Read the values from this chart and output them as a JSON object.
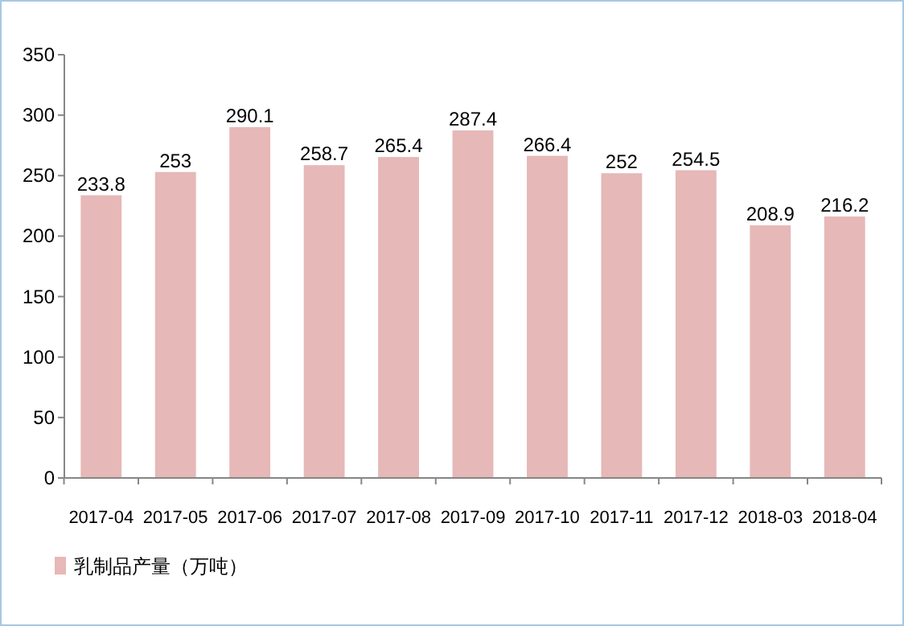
{
  "chart_data": {
    "type": "bar",
    "categories": [
      "2017-04",
      "2017-05",
      "2017-06",
      "2017-07",
      "2017-08",
      "2017-09",
      "2017-10",
      "2017-11",
      "2017-12",
      "2018-03",
      "2018-04"
    ],
    "series": [
      {
        "name": "乳制品产量（万吨）",
        "color": "#e6b8b7",
        "values": [
          233.8,
          253,
          290.1,
          258.7,
          265.4,
          287.4,
          266.4,
          252,
          254.5,
          208.9,
          216.2
        ]
      }
    ],
    "ylim": [
      0,
      350
    ],
    "yticks": [
      0,
      50,
      100,
      150,
      200,
      250,
      300,
      350
    ],
    "data_labels": true,
    "grid": false,
    "legend": "bottom left"
  }
}
